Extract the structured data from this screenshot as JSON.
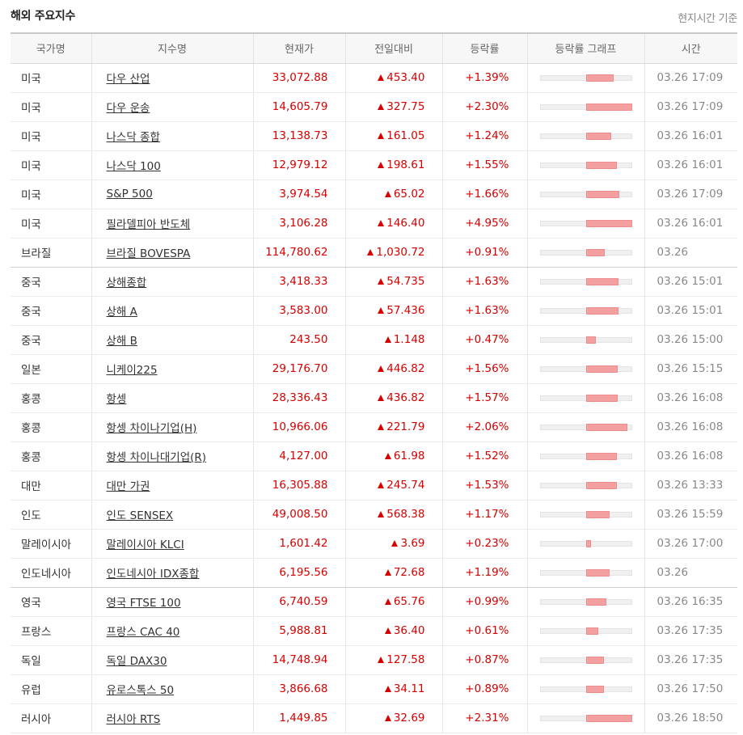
{
  "header": {
    "title": "해외 주요지수",
    "note": "현지시간 기준"
  },
  "columns": [
    "국가명",
    "지수명",
    "현재가",
    "전일대비",
    "등락률",
    "등락률 그래프",
    "시간"
  ],
  "colors": {
    "up": "#d60000",
    "bar_fill": "#f5a0a0"
  },
  "rows": [
    {
      "country": "미국",
      "name": "다우 산업",
      "price": "33,072.88",
      "change": "453.40",
      "rate": "+1.39%",
      "rate_value": 1.39,
      "time": "03.26 17:09"
    },
    {
      "country": "미국",
      "name": "다우 운송",
      "price": "14,605.79",
      "change": "327.75",
      "rate": "+2.30%",
      "rate_value": 2.3,
      "time": "03.26 17:09"
    },
    {
      "country": "미국",
      "name": "나스닥 종합",
      "price": "13,138.73",
      "change": "161.05",
      "rate": "+1.24%",
      "rate_value": 1.24,
      "time": "03.26 16:01"
    },
    {
      "country": "미국",
      "name": "나스닥 100",
      "price": "12,979.12",
      "change": "198.61",
      "rate": "+1.55%",
      "rate_value": 1.55,
      "time": "03.26 16:01"
    },
    {
      "country": "미국",
      "name": "S&P 500",
      "price": "3,974.54",
      "change": "65.02",
      "rate": "+1.66%",
      "rate_value": 1.66,
      "time": "03.26 17:09"
    },
    {
      "country": "미국",
      "name": "필라델피아 반도체",
      "price": "3,106.28",
      "change": "146.40",
      "rate": "+4.95%",
      "rate_value": 4.95,
      "time": "03.26 16:01"
    },
    {
      "country": "브라질",
      "name": "브라질 BOVESPA",
      "price": "114,780.62",
      "change": "1,030.72",
      "rate": "+0.91%",
      "rate_value": 0.91,
      "time": "03.26",
      "group_end": true
    },
    {
      "country": "중국",
      "name": "상해종합",
      "price": "3,418.33",
      "change": "54.735",
      "rate": "+1.63%",
      "rate_value": 1.63,
      "time": "03.26 15:01"
    },
    {
      "country": "중국",
      "name": "상해 A",
      "price": "3,583.00",
      "change": "57.436",
      "rate": "+1.63%",
      "rate_value": 1.63,
      "time": "03.26 15:01"
    },
    {
      "country": "중국",
      "name": "상해 B",
      "price": "243.50",
      "change": "1.148",
      "rate": "+0.47%",
      "rate_value": 0.47,
      "time": "03.26 15:00"
    },
    {
      "country": "일본",
      "name": "니케이225",
      "price": "29,176.70",
      "change": "446.82",
      "rate": "+1.56%",
      "rate_value": 1.56,
      "time": "03.26 15:15"
    },
    {
      "country": "홍콩",
      "name": "항셍",
      "price": "28,336.43",
      "change": "436.82",
      "rate": "+1.57%",
      "rate_value": 1.57,
      "time": "03.26 16:08"
    },
    {
      "country": "홍콩",
      "name": "항셍 차이나기업(H)",
      "price": "10,966.06",
      "change": "221.79",
      "rate": "+2.06%",
      "rate_value": 2.06,
      "time": "03.26 16:08"
    },
    {
      "country": "홍콩",
      "name": "항셍 차이나대기업(R)",
      "price": "4,127.00",
      "change": "61.98",
      "rate": "+1.52%",
      "rate_value": 1.52,
      "time": "03.26 16:08"
    },
    {
      "country": "대만",
      "name": "대만 가권",
      "price": "16,305.88",
      "change": "245.74",
      "rate": "+1.53%",
      "rate_value": 1.53,
      "time": "03.26 13:33"
    },
    {
      "country": "인도",
      "name": "인도 SENSEX",
      "price": "49,008.50",
      "change": "568.38",
      "rate": "+1.17%",
      "rate_value": 1.17,
      "time": "03.26 15:59"
    },
    {
      "country": "말레이시아",
      "name": "말레이시아 KLCI",
      "price": "1,601.42",
      "change": "3.69",
      "rate": "+0.23%",
      "rate_value": 0.23,
      "time": "03.26 17:00"
    },
    {
      "country": "인도네시아",
      "name": "인도네시아 IDX종합",
      "price": "6,195.56",
      "change": "72.68",
      "rate": "+1.19%",
      "rate_value": 1.19,
      "time": "03.26",
      "group_end": true
    },
    {
      "country": "영국",
      "name": "영국 FTSE 100",
      "price": "6,740.59",
      "change": "65.76",
      "rate": "+0.99%",
      "rate_value": 0.99,
      "time": "03.26 16:35"
    },
    {
      "country": "프랑스",
      "name": "프랑스 CAC 40",
      "price": "5,988.81",
      "change": "36.40",
      "rate": "+0.61%",
      "rate_value": 0.61,
      "time": "03.26 17:35"
    },
    {
      "country": "독일",
      "name": "독일 DAX30",
      "price": "14,748.94",
      "change": "127.58",
      "rate": "+0.87%",
      "rate_value": 0.87,
      "time": "03.26 17:35"
    },
    {
      "country": "유럽",
      "name": "유로스톡스 50",
      "price": "3,866.68",
      "change": "34.11",
      "rate": "+0.89%",
      "rate_value": 0.89,
      "time": "03.26 17:50"
    },
    {
      "country": "러시아",
      "name": "러시아 RTS",
      "price": "1,449.85",
      "change": "32.69",
      "rate": "+2.31%",
      "rate_value": 2.31,
      "time": "03.26 18:50"
    }
  ]
}
